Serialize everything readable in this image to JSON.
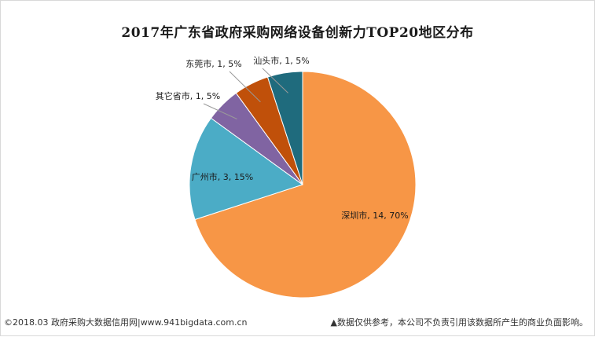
{
  "chart_data": {
    "type": "pie",
    "title": "2017年广东省政府采购网络设备创新力TOP20地区分布",
    "slices": [
      {
        "name": "深圳市",
        "value": 14,
        "percent": "70%",
        "label": "深圳市, 14, 70%",
        "color": "#f79646"
      },
      {
        "name": "广州市",
        "value": 3,
        "percent": "15%",
        "label": "广州市, 3, 15%",
        "color": "#4bacc6"
      },
      {
        "name": "其它省市",
        "value": 1,
        "percent": "5%",
        "label": "其它省市, 1, 5%",
        "color": "#8064a2"
      },
      {
        "name": "东莞市",
        "value": 1,
        "percent": "5%",
        "label": "东莞市, 1, 5%",
        "color": "#c0500a"
      },
      {
        "name": "汕头市",
        "value": 1,
        "percent": "5%",
        "label": "汕头市, 1, 5%",
        "color": "#1f6b7d"
      }
    ]
  },
  "footer": {
    "source": "©2018.03 政府采购大数据信用网|www.941bigdata.com.cn",
    "disclaimer": "▲数据仅供参考，本公司不负责引用该数据所产生的商业负面影响。"
  }
}
